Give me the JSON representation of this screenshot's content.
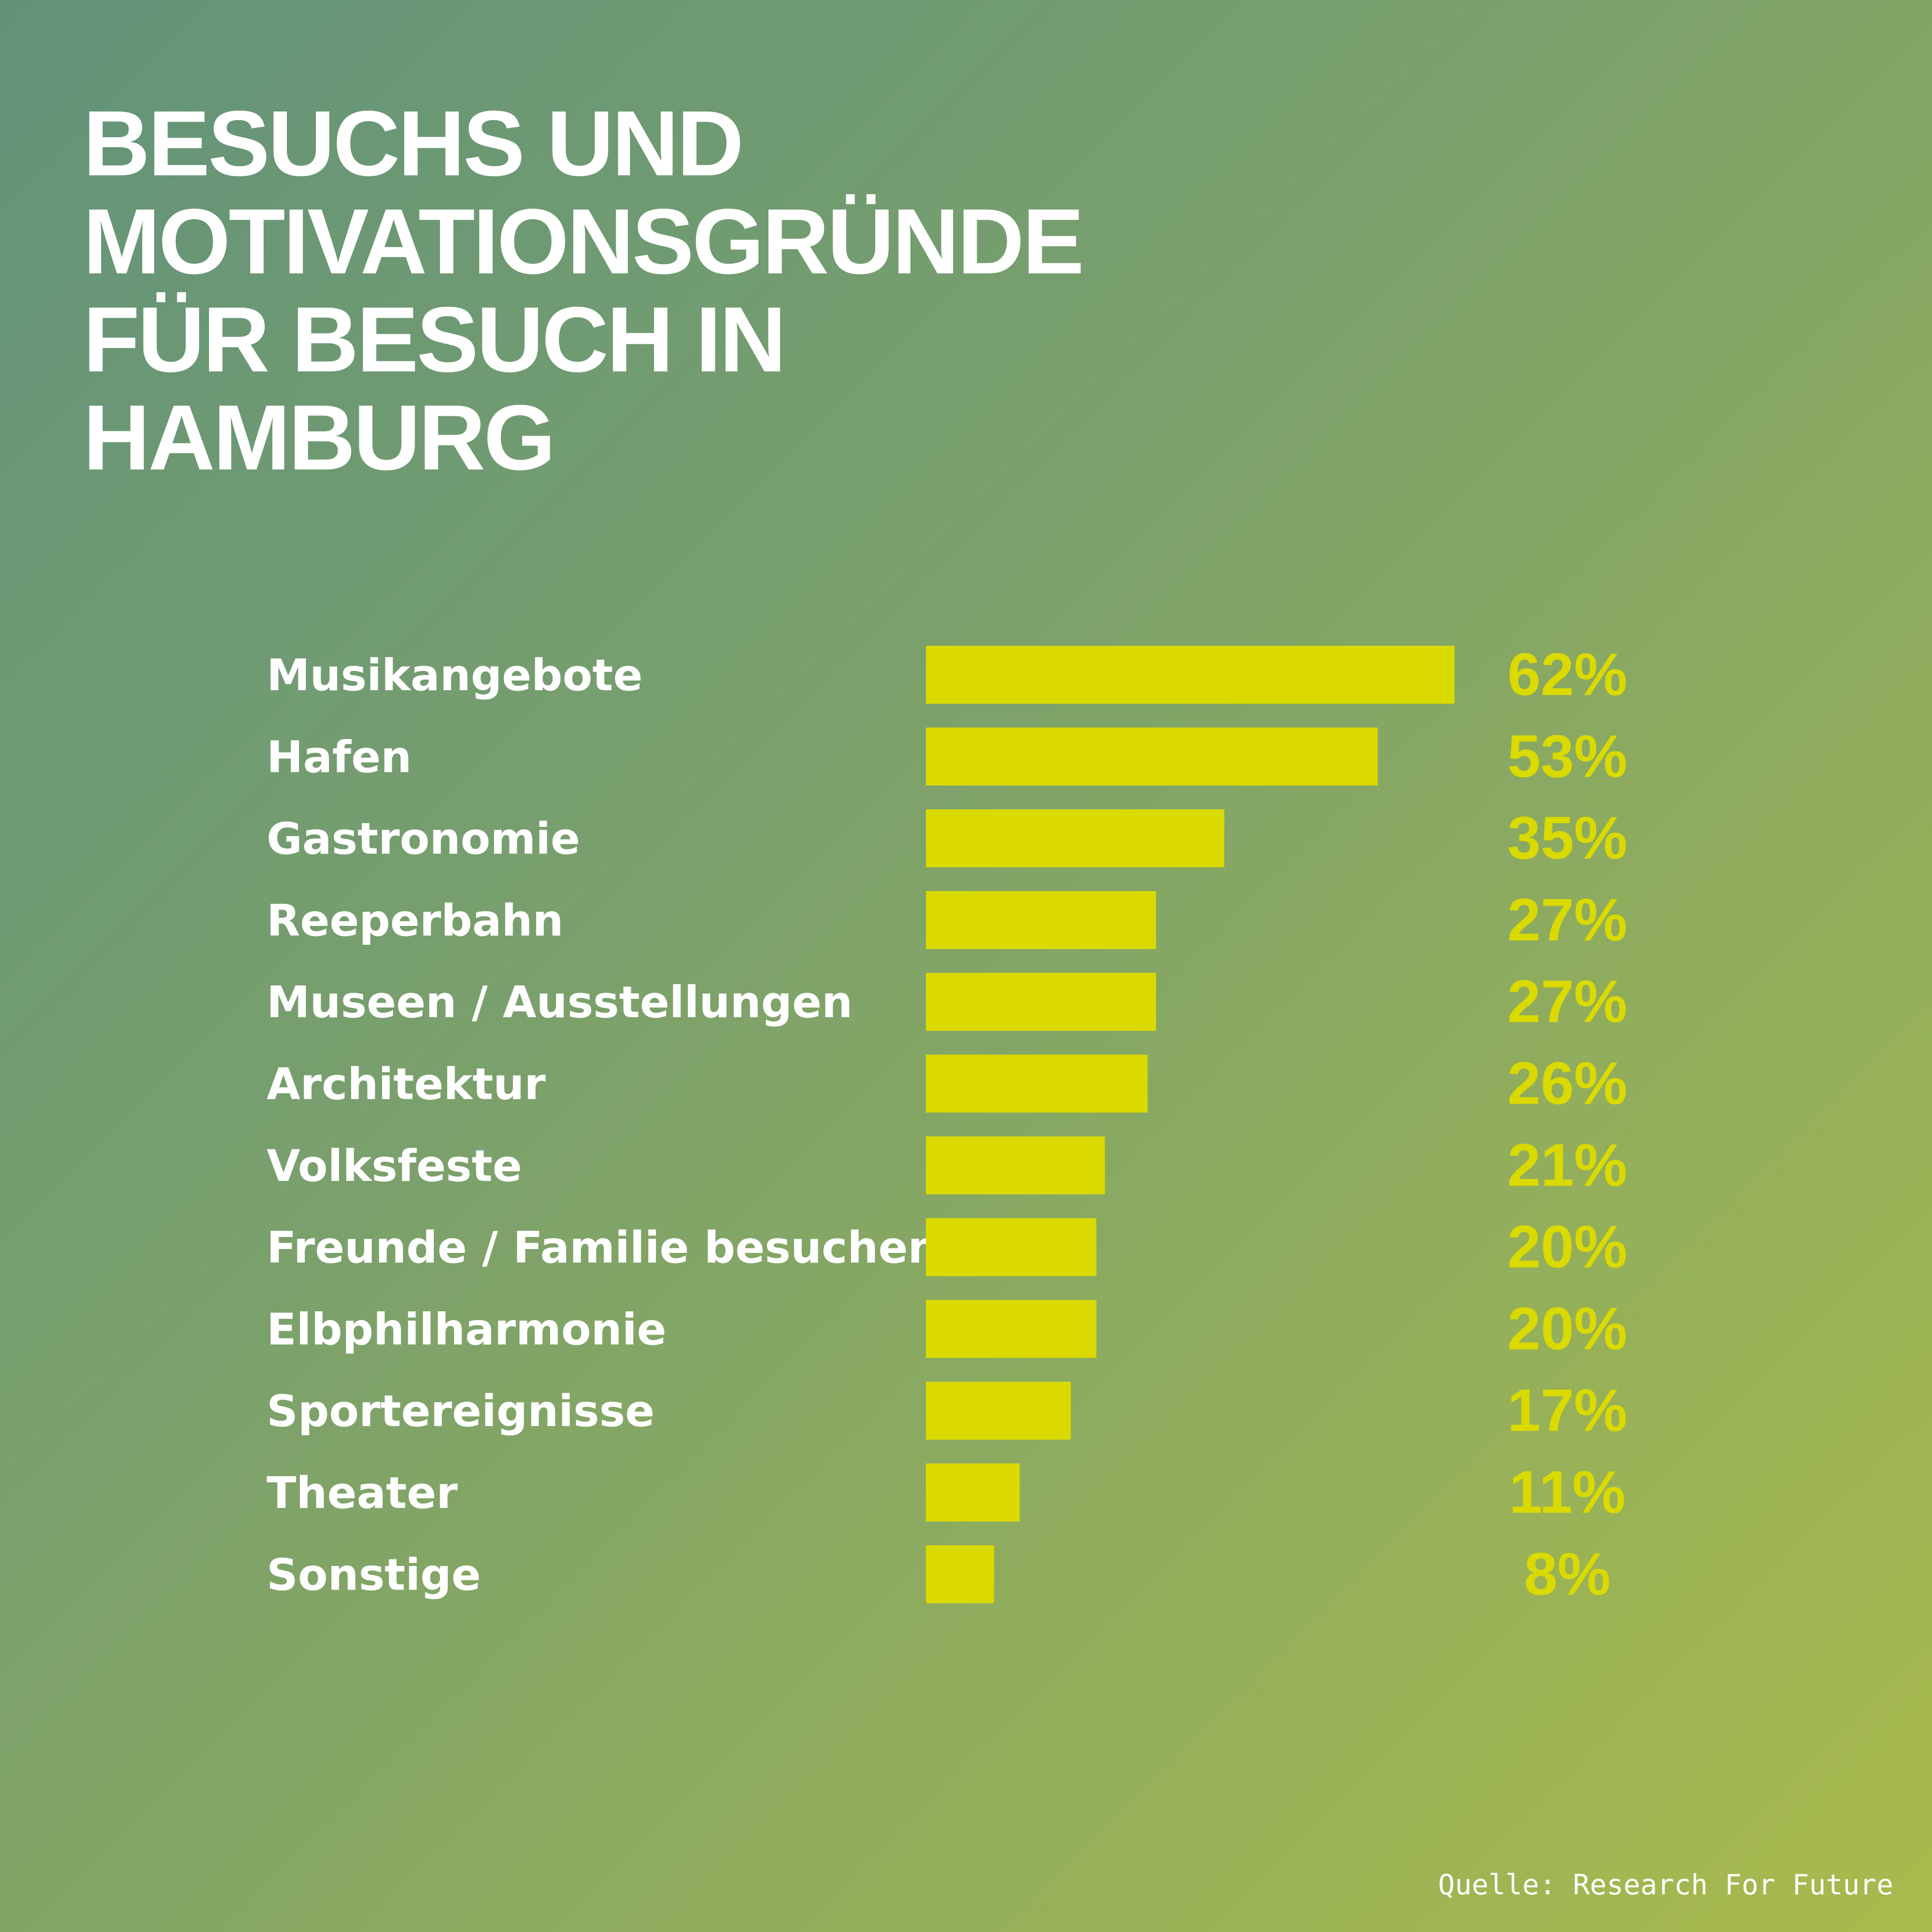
{
  "chart_data": {
    "type": "bar",
    "orientation": "horizontal",
    "title": "BESUCHS UND MOTIVATIONSGRÜNDE FÜR BESUCH IN HAMBURG",
    "title_lines": [
      "BESUCHS UND",
      "MOTIVATIONSGRÜNDE",
      "FÜR BESUCH IN",
      "HAMBURG"
    ],
    "categories": [
      "Musikangebote",
      "Hafen",
      "Gastronomie",
      "Reeperbahn",
      "Museen / Ausstellungen",
      "Architektur",
      "Volksfeste",
      "Freunde / Familie besuchen",
      "Elbphilharmonie",
      "Sportereignisse",
      "Theater",
      "Sonstige"
    ],
    "values": [
      62,
      53,
      35,
      27,
      27,
      26,
      21,
      20,
      20,
      17,
      11,
      8
    ],
    "value_labels": [
      "62%",
      "53%",
      "35%",
      "27%",
      "27%",
      "26%",
      "21%",
      "20%",
      "20%",
      "17%",
      "11%",
      "8%"
    ],
    "unit": "%",
    "xlabel": "",
    "ylabel": "",
    "grid": false,
    "bar_color": "#dada00",
    "label_color": "#ffffff",
    "value_color": "#dada00"
  },
  "source": "Quelle: Research For Future"
}
